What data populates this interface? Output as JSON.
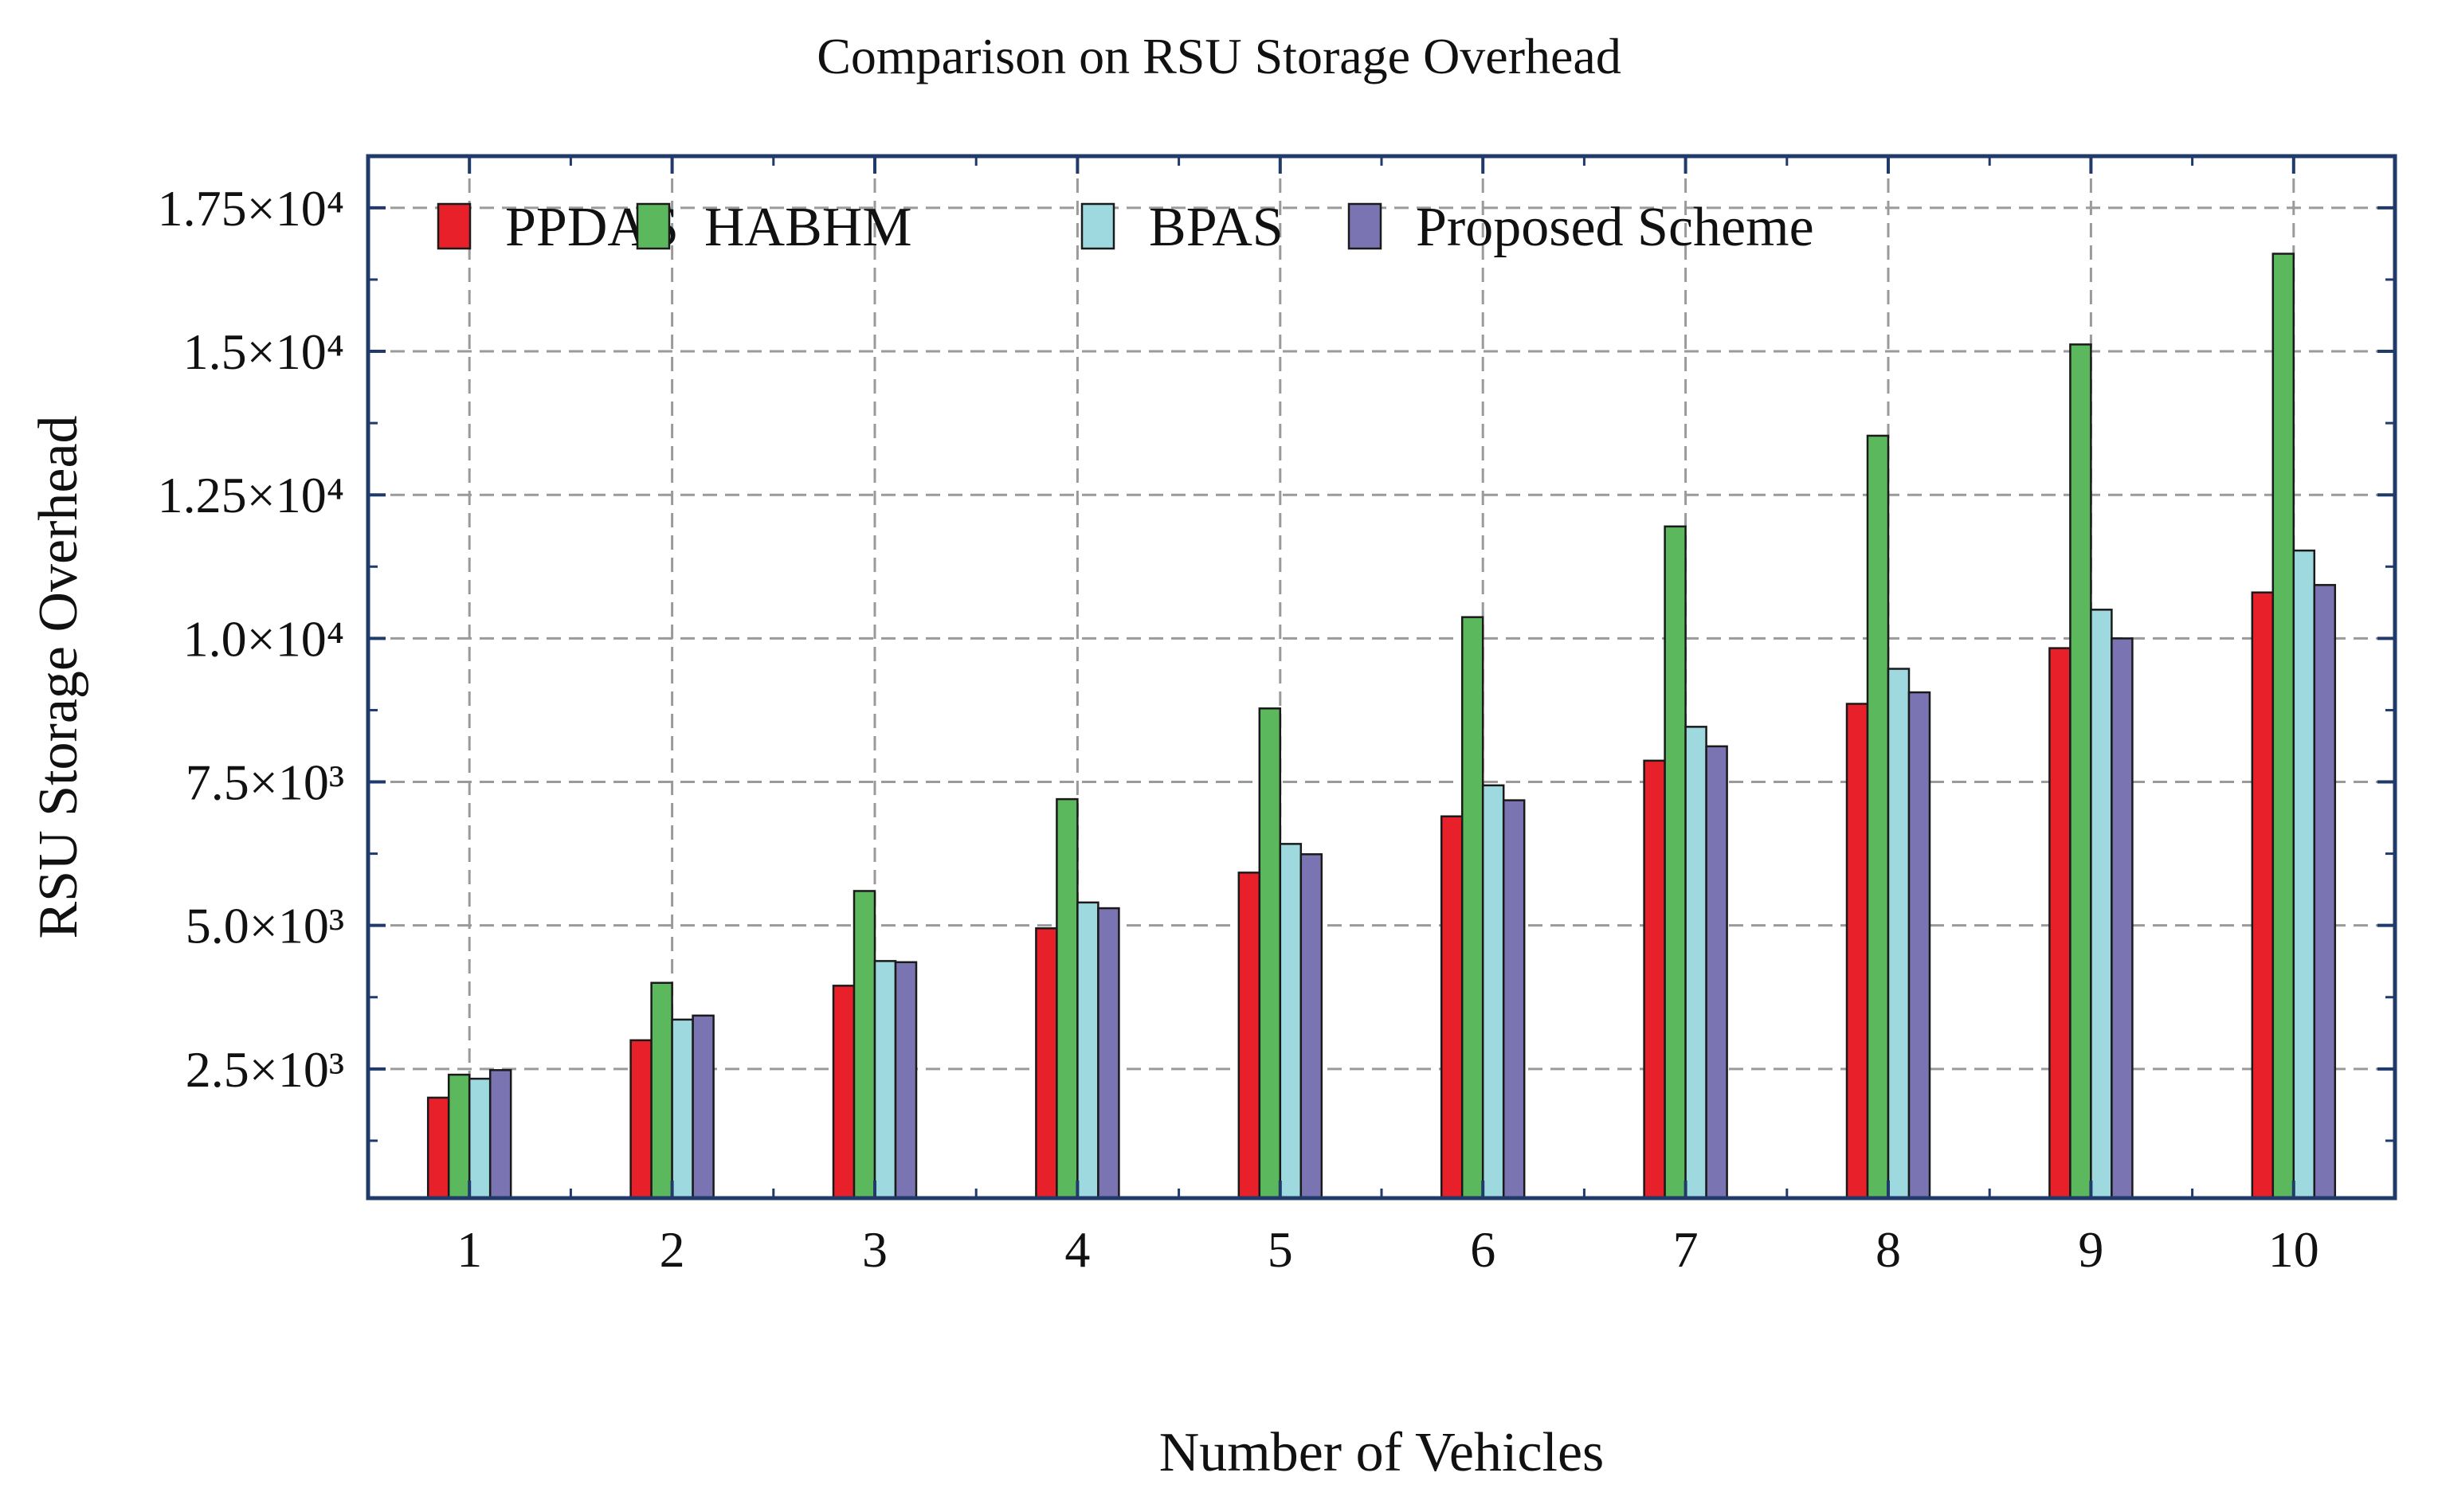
{
  "chart_data": {
    "type": "bar",
    "title": "Comparison on RSU Storage Overhead",
    "xlabel": "Number of Vehicles",
    "ylabel": "RSU Storage Overhead",
    "categories": [
      "1",
      "2",
      "3",
      "4",
      "5",
      "6",
      "7",
      "8",
      "9",
      "10"
    ],
    "series": [
      {
        "name": "PPDAS",
        "color": "#e8202a",
        "values": [
          2000,
          3000,
          3950,
          4950,
          5920,
          6900,
          7870,
          8860,
          9830,
          10800
        ]
      },
      {
        "name": "HABHM",
        "color": "#5cb85c",
        "values": [
          2400,
          4000,
          5600,
          7200,
          8780,
          10370,
          11950,
          13530,
          15120,
          16700
        ]
      },
      {
        "name": "BPAS",
        "color": "#9dd9df",
        "values": [
          2330,
          3360,
          4380,
          5400,
          6420,
          7440,
          8460,
          9470,
          10500,
          11530
        ]
      },
      {
        "name": "Proposed Scheme",
        "color": "#7b74b2",
        "values": [
          2480,
          3430,
          4360,
          5300,
          6240,
          7180,
          8120,
          9060,
          10000,
          10930
        ]
      }
    ],
    "ylim": [
      250,
      18400
    ],
    "yticks": [
      {
        "value": 2500,
        "label": "2.5×10³"
      },
      {
        "value": 5000,
        "label": "5.0×10³"
      },
      {
        "value": 7500,
        "label": "7.5×10³"
      },
      {
        "value": 10000,
        "label": "1.0×10⁴"
      },
      {
        "value": 12500,
        "label": "1.25×10⁴"
      },
      {
        "value": 15000,
        "label": "1.5×10⁴"
      },
      {
        "value": 17500,
        "label": "1.75×10⁴"
      }
    ],
    "grid": true,
    "legend_position": "top-left"
  }
}
